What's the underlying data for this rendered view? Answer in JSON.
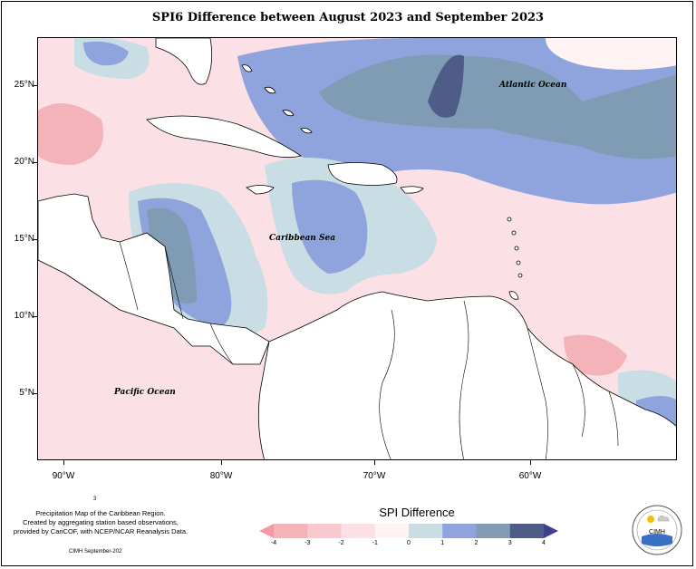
{
  "title": "SPI6 Difference between August 2023 and September 2023",
  "lat_ticks": [
    "25°N",
    "20°N",
    "15°N",
    "10°N",
    "5°N"
  ],
  "lon_ticks": [
    "90°W",
    "80°W",
    "70°W",
    "60°W"
  ],
  "labels": {
    "atlantic": "Atlantic Ocean",
    "caribbean": "Caribbean Sea",
    "pacific": "Pacific Ocean"
  },
  "credit": {
    "page_number": "3",
    "line1": "Precipitation Map of the Caribbean Region.",
    "line2": "Created by aggregating station based observations,",
    "line3": "provided by CariCOF, with NCEP/NCAR Reanalysis Data.",
    "footer": "CIMH September-202"
  },
  "legend": {
    "title": "SPI Difference",
    "ticks": [
      "-4",
      "-3",
      "-2",
      "-1",
      "0",
      "1",
      "2",
      "3",
      "4"
    ],
    "colors": [
      "#f59aa2",
      "#f4b3b8",
      "#f8c9cf",
      "#fbe1e5",
      "#fff3f3",
      "#c8dde4",
      "#8fa3dc",
      "#7f9cb4",
      "#4f5c88",
      "#3f3f8a"
    ]
  },
  "logo": {
    "text": "CIMH",
    "icon": "cimh-logo-icon"
  }
}
